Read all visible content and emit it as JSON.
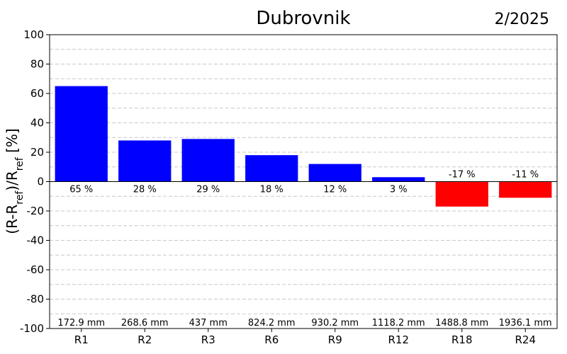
{
  "header": {
    "title": "Dubrovnik",
    "date": "2/2025"
  },
  "chart_data": {
    "type": "bar",
    "title": "Dubrovnik",
    "ylabel": "(R-R_ref)/R_ref [%]",
    "ylabel_parts": {
      "base1": "(R-R",
      "sub1": "ref",
      "base2": ")/R",
      "sub2": "ref",
      "base3": " [%]"
    },
    "ylim": [
      -100,
      100
    ],
    "yticks": [
      100,
      80,
      60,
      40,
      20,
      0,
      -20,
      -40,
      -60,
      -80,
      -100
    ],
    "grid": true,
    "categories": [
      "R1",
      "R2",
      "R3",
      "R6",
      "R9",
      "R12",
      "R18",
      "R24"
    ],
    "values": [
      65,
      28,
      29,
      18,
      12,
      3,
      -17,
      -11
    ],
    "value_labels": [
      "65 %",
      "28 %",
      "29 %",
      "18 %",
      "12 %",
      "3 %",
      "-17 %",
      "-11 %"
    ],
    "precip_labels": [
      "172.9 mm",
      "268.6 mm",
      "437 mm",
      "824.2 mm",
      "930.2 mm",
      "1118.2 mm",
      "1488.8 mm",
      "1936.1 mm"
    ],
    "colors": {
      "positive": "#0000ff",
      "negative": "#ff0000"
    }
  }
}
